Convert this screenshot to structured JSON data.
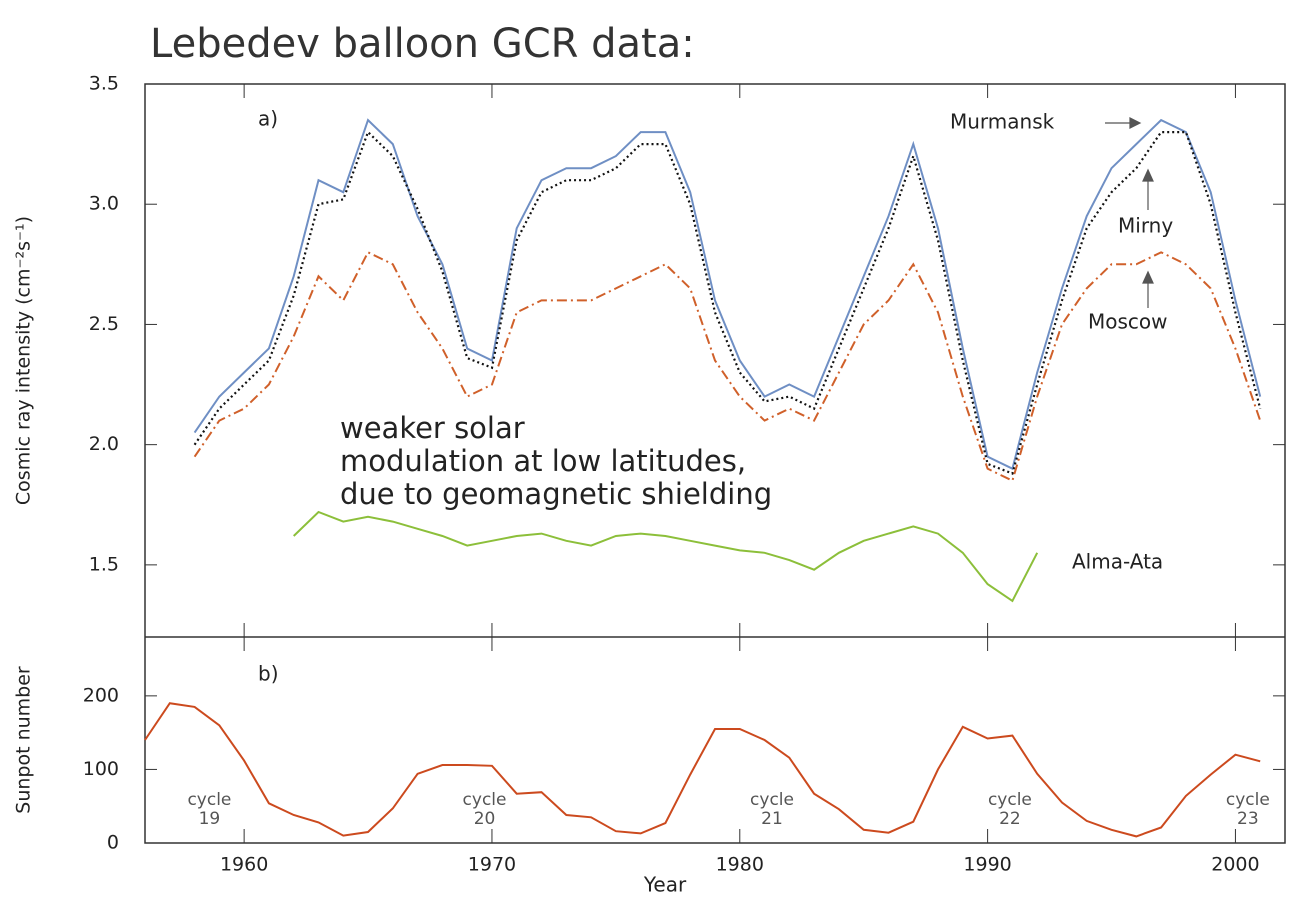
{
  "chart_data": [
    {
      "type": "line",
      "title": "Lebedev balloon GCR data:",
      "panel_label": "a)",
      "ylabel": "Cosmic ray intensity (cm⁻²s⁻¹)",
      "annotation_lines": [
        "weaker solar",
        "modulation at low latitudes,",
        "due to geomagnetic shielding"
      ],
      "x": [
        1958,
        1959,
        1960,
        1961,
        1962,
        1963,
        1964,
        1965,
        1966,
        1967,
        1968,
        1969,
        1970,
        1971,
        1972,
        1973,
        1974,
        1975,
        1976,
        1977,
        1978,
        1979,
        1980,
        1981,
        1982,
        1983,
        1984,
        1985,
        1986,
        1987,
        1988,
        1989,
        1990,
        1991,
        1992,
        1993,
        1994,
        1995,
        1996,
        1997,
        1998,
        1999,
        2000,
        2001
      ],
      "series": [
        {
          "name": "Murmansk",
          "color": "#6f8fc4",
          "style": "solid",
          "values": [
            2.05,
            2.2,
            2.3,
            2.4,
            2.7,
            3.1,
            3.05,
            3.35,
            3.25,
            2.95,
            2.75,
            2.4,
            2.35,
            2.9,
            3.1,
            3.15,
            3.15,
            3.2,
            3.3,
            3.3,
            3.05,
            2.6,
            2.35,
            2.2,
            2.25,
            2.2,
            2.45,
            2.7,
            2.95,
            3.25,
            2.9,
            2.4,
            1.95,
            1.9,
            2.3,
            2.65,
            2.95,
            3.15,
            3.25,
            3.35,
            3.3,
            3.05,
            2.6,
            2.2
          ]
        },
        {
          "name": "Mirny",
          "color": "#111111",
          "style": "dotted",
          "values": [
            2.0,
            2.15,
            2.25,
            2.35,
            2.62,
            3.0,
            3.02,
            3.3,
            3.2,
            2.98,
            2.72,
            2.36,
            2.32,
            2.85,
            3.05,
            3.1,
            3.1,
            3.15,
            3.25,
            3.25,
            3.0,
            2.55,
            2.3,
            2.18,
            2.2,
            2.15,
            2.4,
            2.65,
            2.9,
            3.2,
            2.85,
            2.35,
            1.92,
            1.88,
            2.25,
            2.6,
            2.9,
            3.05,
            3.15,
            3.3,
            3.3,
            3.0,
            2.55,
            2.15
          ]
        },
        {
          "name": "Moscow",
          "color": "#d0602a",
          "style": "dashdot",
          "values": [
            1.95,
            2.1,
            2.15,
            2.25,
            2.45,
            2.7,
            2.6,
            2.8,
            2.75,
            2.55,
            2.4,
            2.2,
            2.25,
            2.55,
            2.6,
            2.6,
            2.6,
            2.65,
            2.7,
            2.75,
            2.65,
            2.35,
            2.2,
            2.1,
            2.15,
            2.1,
            2.3,
            2.5,
            2.6,
            2.75,
            2.55,
            2.2,
            1.9,
            1.85,
            2.2,
            2.5,
            2.65,
            2.75,
            2.75,
            2.8,
            2.75,
            2.65,
            2.4,
            2.1
          ]
        },
        {
          "name": "Alma-Ata",
          "color": "#8cbf3a",
          "style": "solid",
          "values": [
            null,
            null,
            null,
            null,
            1.62,
            1.72,
            1.68,
            1.7,
            1.68,
            1.65,
            1.62,
            1.58,
            1.6,
            1.62,
            1.63,
            1.6,
            1.58,
            1.62,
            1.63,
            1.62,
            1.6,
            1.58,
            1.56,
            1.55,
            1.52,
            1.48,
            1.55,
            1.6,
            1.63,
            1.66,
            1.63,
            1.55,
            1.42,
            1.35,
            1.55,
            null,
            null,
            null,
            null,
            null,
            null,
            null,
            null,
            null
          ]
        }
      ],
      "xlim": [
        1956,
        2002
      ],
      "xticks": [
        1960,
        1970,
        1980,
        1990,
        2000
      ],
      "ylim": [
        1.2,
        3.5
      ],
      "yticks": [
        3.5,
        {
          "value": 3,
          "label": "3.0"
        },
        2.5,
        {
          "value": 2,
          "label": "2.0"
        },
        1.5
      ]
    },
    {
      "type": "line",
      "panel_label": "b)",
      "ylabel": "Sunpot number",
      "xlabel": "Year",
      "cycles": [
        [
          "cycle",
          "19"
        ],
        [
          "cycle",
          "20"
        ],
        [
          "cycle",
          "21"
        ],
        [
          "cycle",
          "22"
        ],
        [
          "cycle",
          "23"
        ]
      ],
      "x": [
        1956,
        1957,
        1958,
        1959,
        1960,
        1961,
        1962,
        1963,
        1964,
        1965,
        1966,
        1967,
        1968,
        1969,
        1970,
        1971,
        1972,
        1973,
        1974,
        1975,
        1976,
        1977,
        1978,
        1979,
        1980,
        1981,
        1982,
        1983,
        1984,
        1985,
        1986,
        1987,
        1988,
        1989,
        1990,
        1991,
        1992,
        1993,
        1994,
        1995,
        1996,
        1997,
        1998,
        1999,
        2000,
        2001
      ],
      "series": [
        {
          "color": "#cc4a1e",
          "values": [
            140,
            190,
            185,
            160,
            112,
            54,
            38,
            28,
            10,
            15,
            47,
            94,
            106,
            106,
            105,
            67,
            69,
            38,
            35,
            16,
            13,
            27,
            93,
            155,
            155,
            140,
            116,
            67,
            46,
            18,
            14,
            29,
            100,
            158,
            142,
            146,
            94,
            55,
            30,
            18,
            9,
            21,
            64,
            93,
            120,
            111
          ]
        }
      ],
      "xlim": [
        1956,
        2002
      ],
      "xticks": [
        1960,
        1970,
        1980,
        1990,
        2000
      ],
      "ylim": [
        0,
        280
      ],
      "yticks": [
        0,
        100,
        200
      ]
    }
  ]
}
